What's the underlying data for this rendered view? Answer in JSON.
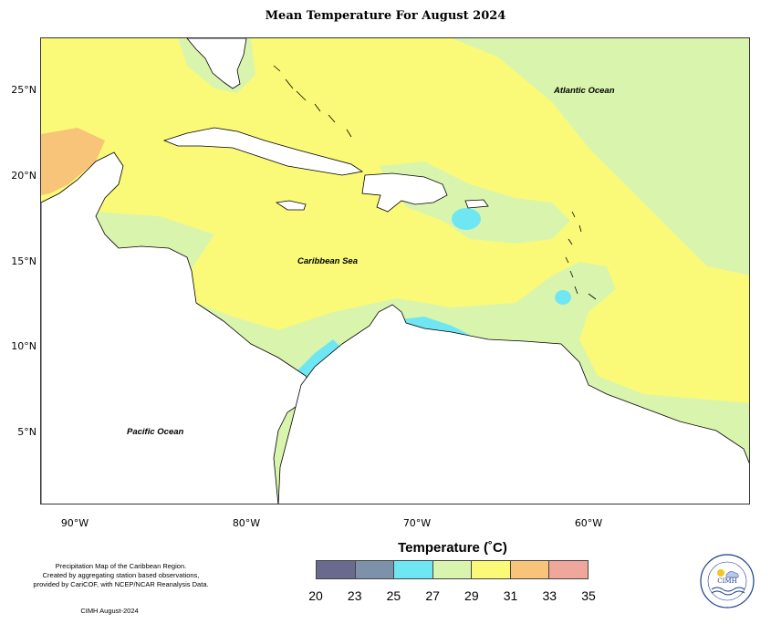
{
  "title": "Mean Temperature For August 2024",
  "axes": {
    "y_ticks": [
      "25°N",
      "20°N",
      "15°N",
      "10°N",
      "5°N"
    ],
    "x_ticks": [
      "90°W",
      "80°W",
      "70°W",
      "60°W"
    ]
  },
  "labels": {
    "atlantic": "Atlantic Ocean",
    "caribbean": "Caribbean Sea",
    "pacific": "Pacific Ocean"
  },
  "caption": {
    "line1": "Precipitation Map of the Caribbean Region.",
    "line2": "Created by aggregating station based observations,",
    "line3": "provided by CariCOF, with NCEP/NCAR Reanalysis Data.",
    "credit": "CIMH August-2024"
  },
  "legend": {
    "title": "Temperature (˚C)",
    "ticks": [
      "20",
      "23",
      "25",
      "27",
      "29",
      "31",
      "33",
      "35"
    ],
    "colors": [
      "#6a6a8e",
      "#7d91a8",
      "#6fe7f3",
      "#d9f5ad",
      "#fafa78",
      "#f7c47a",
      "#eea79a"
    ]
  },
  "logo": {
    "text": "CIMH"
  },
  "colors": {
    "land": "#ffffff",
    "band_23_25": "#7d91a8",
    "band_25_27": "#6fe7f3",
    "band_27_29": "#d9f5ad",
    "band_29_31": "#fafa78",
    "band_31_33": "#f7c47a"
  }
}
